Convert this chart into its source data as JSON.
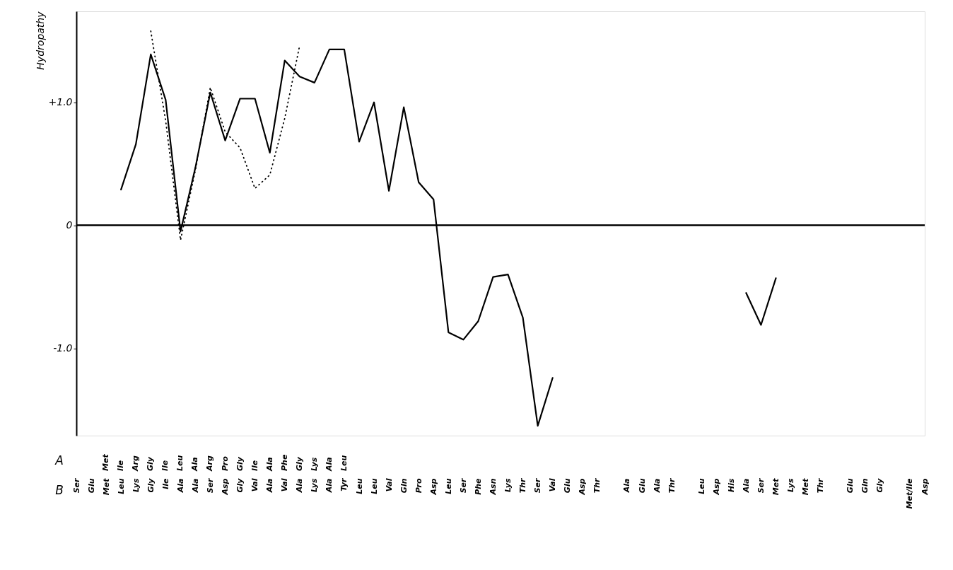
{
  "chart_data": {
    "type": "line",
    "ylabel": "Hydropathy",
    "xlabel": "B",
    "x2label": "A",
    "categories": [
      "Ser",
      "Glu",
      "Met",
      "Leu",
      "Lys",
      "Gly",
      "Ile",
      "Ala",
      "Ala",
      "Ser",
      "Asp",
      "Gly",
      "Val",
      "Ala",
      "Val",
      "Ala",
      "Lys",
      "Ala",
      "Tyr",
      "Leu",
      "Leu",
      "Val",
      "Gln",
      "Pro",
      "Asp",
      "Leu",
      "Ser",
      "Phe",
      "Asn",
      "Lys",
      "Thr",
      "Ser",
      "Val",
      "Glu",
      "Asp",
      "Thr",
      null,
      "Ala",
      "Glu",
      "Ala",
      "Thr",
      null,
      "Leu",
      "Asp",
      "His",
      "Ala",
      "Ser",
      "Met",
      "Lys",
      "Met",
      "Thr",
      null,
      "Glu",
      "Gln",
      "Gly",
      null,
      "Met/Ile",
      "Asp"
    ],
    "annotations": [
      "Met",
      "Ile",
      "Arg",
      "Gly",
      "Ile",
      "Leu",
      "Ala",
      "Arg",
      "Pro",
      "Gly",
      "Ile",
      "Ala",
      "Phe",
      "Gly",
      "Lys",
      "Ala",
      "Leu"
    ],
    "series": [
      {
        "color": "#000000",
        "line_style": "solid",
        "values": [
          null,
          null,
          null,
          0.29,
          0.66,
          1.39,
          1.02,
          -0.05,
          0.47,
          1.08,
          0.69,
          1.03,
          1.03,
          0.59,
          1.34,
          1.21,
          1.16,
          1.43,
          1.43,
          0.68,
          1.0,
          0.28,
          0.96,
          0.35,
          0.21,
          -0.87,
          -0.93,
          -0.78,
          -0.42,
          -0.4,
          -0.75,
          -1.63,
          -1.24,
          null,
          null,
          null,
          null,
          null,
          null,
          null,
          null,
          null,
          null,
          null,
          null,
          -0.55,
          -0.81,
          -0.43,
          null,
          null,
          null,
          null,
          null,
          null,
          null,
          null,
          null,
          null
        ]
      },
      {
        "color": "#000000",
        "line_style": "dotted",
        "values": [
          null,
          null,
          null,
          null,
          null,
          1.58,
          0.85,
          -0.12,
          0.45,
          1.12,
          0.76,
          0.63,
          0.3,
          0.41,
          0.87,
          1.46,
          null,
          null,
          null,
          null,
          null,
          null,
          null,
          null,
          null,
          null,
          null,
          null,
          null,
          null,
          null,
          null,
          null,
          null,
          null,
          null,
          null,
          null,
          null,
          null,
          null,
          null,
          null,
          null,
          null,
          null,
          null,
          null,
          null,
          null,
          null,
          null,
          null,
          null,
          null,
          null,
          null,
          null
        ]
      }
    ],
    "ylim": [
      -1.71,
      1.74
    ],
    "yticks": [
      {
        "value": 1,
        "label": "+1.0"
      },
      0,
      {
        "value": -1,
        "label": "-1.0"
      }
    ],
    "ref_lines": [
      {
        "axis": "y",
        "value": 0,
        "color": "#000000"
      }
    ],
    "grid": false
  }
}
